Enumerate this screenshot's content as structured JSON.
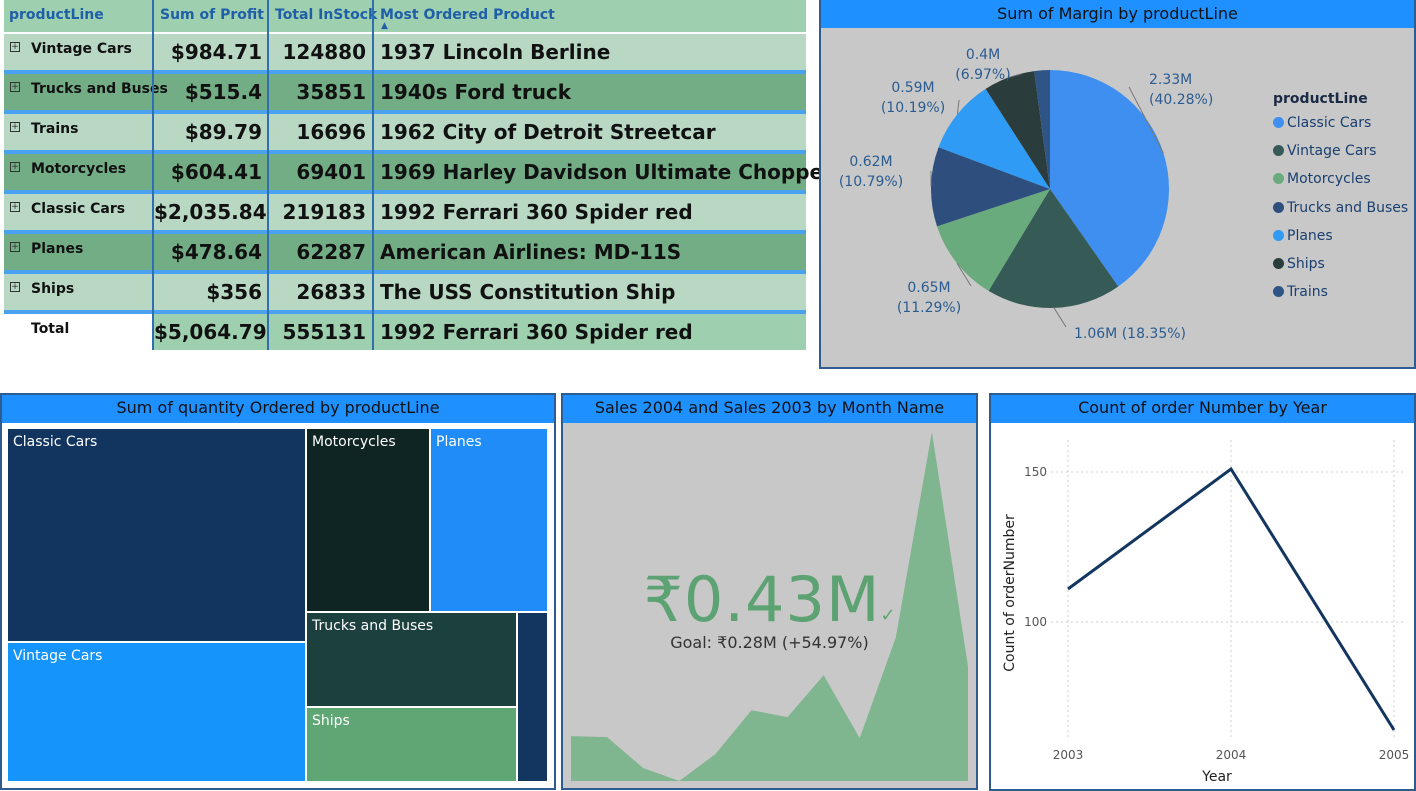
{
  "matrix": {
    "headers": [
      "productLine",
      "Sum of Profit",
      "Total InStock",
      "Most Ordered Product"
    ],
    "sort_indicator": "▲",
    "expand_symbol": "+",
    "rows": [
      {
        "label": "Vintage Cars",
        "profit": "$984.71",
        "stock": "124880",
        "product": "1937 Lincoln Berline"
      },
      {
        "label": "Trucks and Buses",
        "profit": "$515.4",
        "stock": "35851",
        "product": "1940s Ford truck"
      },
      {
        "label": "Trains",
        "profit": "$89.79",
        "stock": "16696",
        "product": "1962 City of Detroit Streetcar"
      },
      {
        "label": "Motorcycles",
        "profit": "$604.41",
        "stock": "69401",
        "product": "1969 Harley Davidson Ultimate Chopper"
      },
      {
        "label": "Classic Cars",
        "profit": "$2,035.84",
        "stock": "219183",
        "product": "1992 Ferrari 360 Spider red"
      },
      {
        "label": "Planes",
        "profit": "$478.64",
        "stock": "62287",
        "product": "American Airlines: MD-11S"
      },
      {
        "label": "Ships",
        "profit": "$356",
        "stock": "26833",
        "product": "The USS Constitution Ship"
      }
    ],
    "total": {
      "label": "Total",
      "profit": "$5,064.79",
      "stock": "555131",
      "product": "1992 Ferrari 360 Spider red"
    }
  },
  "pie": {
    "title": "Sum of Margin by productLine",
    "legend_title": "productLine",
    "chart_data": {
      "type": "pie",
      "slices": [
        {
          "name": "Classic Cars",
          "value": 2.33,
          "percent": 40.28,
          "label": "2.33M",
          "pct_label": "(40.28%)",
          "color": "#3e8ff0"
        },
        {
          "name": "Vintage Cars",
          "value": 1.06,
          "percent": 18.35,
          "label": "1.06M",
          "pct_label": "(18.35%)",
          "color": "#365a56"
        },
        {
          "name": "Motorcycles",
          "value": 0.65,
          "percent": 11.29,
          "label": "0.65M",
          "pct_label": "(11.29%)",
          "color": "#6aab7e"
        },
        {
          "name": "Trucks and Buses",
          "value": 0.62,
          "percent": 10.79,
          "label": "0.62M",
          "pct_label": "(10.79%)",
          "color": "#2e4f7e"
        },
        {
          "name": "Planes",
          "value": 0.59,
          "percent": 10.19,
          "label": "0.59M",
          "pct_label": "(10.19%)",
          "color": "#2f9bf5"
        },
        {
          "name": "Ships",
          "value": 0.4,
          "percent": 6.97,
          "label": "0.4M",
          "pct_label": "(6.97%)",
          "color": "#2b3c3c"
        },
        {
          "name": "Trains",
          "value": 0.12,
          "percent": 2.13,
          "label": "",
          "pct_label": "",
          "color": "#2e5585"
        }
      ]
    }
  },
  "treemap": {
    "title": "Sum of quantity Ordered by productLine",
    "chart_data": {
      "type": "treemap",
      "items": [
        {
          "name": "Classic Cars",
          "label": "Classic Cars",
          "color": "#12355f"
        },
        {
          "name": "Vintage Cars",
          "label": "Vintage Cars",
          "color": "#1594fb"
        },
        {
          "name": "Motorcycles",
          "label": "Motorcycles",
          "color": "#0f2524"
        },
        {
          "name": "Planes",
          "label": "Planes",
          "color": "#1f8cf8"
        },
        {
          "name": "Trucks and Buses",
          "label": "Trucks and Buses",
          "color": "#1c403e"
        },
        {
          "name": "Ships",
          "label": "Ships",
          "color": "#5ea674"
        },
        {
          "name": "Trains",
          "label": "",
          "color": "#12365f"
        }
      ]
    }
  },
  "sales": {
    "title": "Sales 2004 and Sales 2003 by Month Name",
    "value": "₹0.43M",
    "check": "✓",
    "goal": "Goal: ₹0.28M (+54.97%)",
    "chart_data": {
      "type": "area",
      "values": [
        0.045,
        0.044,
        0.013,
        0.0,
        0.027,
        0.071,
        0.064,
        0.106,
        0.043,
        0.144,
        0.35,
        0.115
      ],
      "ylim": [
        0,
        0.35
      ],
      "color": "#7fb68f"
    }
  },
  "orders": {
    "title": "Count of order Number by Year",
    "ylabel": "Count of orderNumber",
    "xlabel": "Year",
    "chart_data": {
      "type": "line",
      "x": [
        "2003",
        "2004",
        "2005"
      ],
      "values": [
        111,
        151,
        64
      ],
      "yticks": [
        "100",
        "150"
      ],
      "ytick_values": [
        100,
        150
      ],
      "ylim": [
        64,
        160
      ],
      "color": "#12365f"
    }
  }
}
